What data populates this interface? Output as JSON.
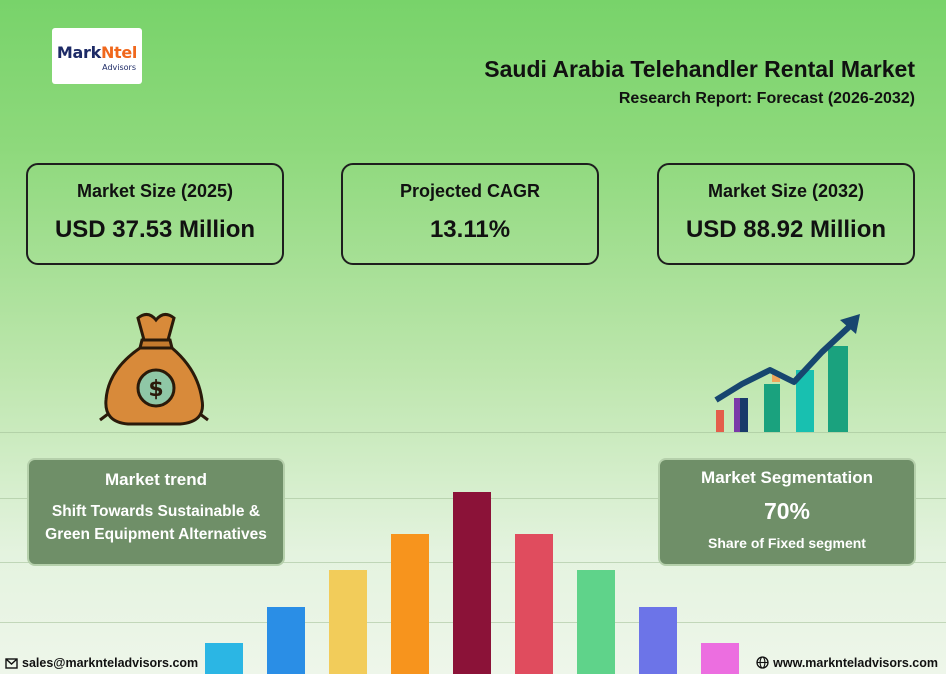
{
  "brand": {
    "name_part1": "Mark",
    "name_part2": "Ntel",
    "tagline": "Advisors"
  },
  "header": {
    "title": "Saudi Arabia Telehandler Rental Market",
    "subtitle": "Research Report: Forecast (2026-2032)"
  },
  "stats": [
    {
      "label": "Market Size (2025)",
      "value": "USD 37.53 Million"
    },
    {
      "label": "Projected CAGR",
      "value": "13.11%"
    },
    {
      "label": "Market Size (2032)",
      "value": "USD 88.92 Million"
    }
  ],
  "trend": {
    "heading": "Market trend",
    "text": "Shift Towards Sustainable & Green Equipment Alternatives"
  },
  "segmentation": {
    "heading": "Market Segmentation",
    "percent": "70%",
    "text": "Share of Fixed segment"
  },
  "decor_bars": {
    "levels": [
      0.17,
      0.37,
      0.57,
      0.77,
      1.0,
      0.77,
      0.57,
      0.37,
      0.17
    ],
    "colors": [
      "#2bb6e4",
      "#2a8ee6",
      "#f2cc5a",
      "#f7941d",
      "#8b1238",
      "#e04c5e",
      "#5fd38a",
      "#6c74e8",
      "#ec6ee0"
    ]
  },
  "icons": [
    "money-bag-icon",
    "growth-chart-icon",
    "email-icon",
    "globe-icon"
  ],
  "footer": {
    "email": "sales@marknteladvisors.com",
    "website": "www.marknteladvisors.com"
  }
}
